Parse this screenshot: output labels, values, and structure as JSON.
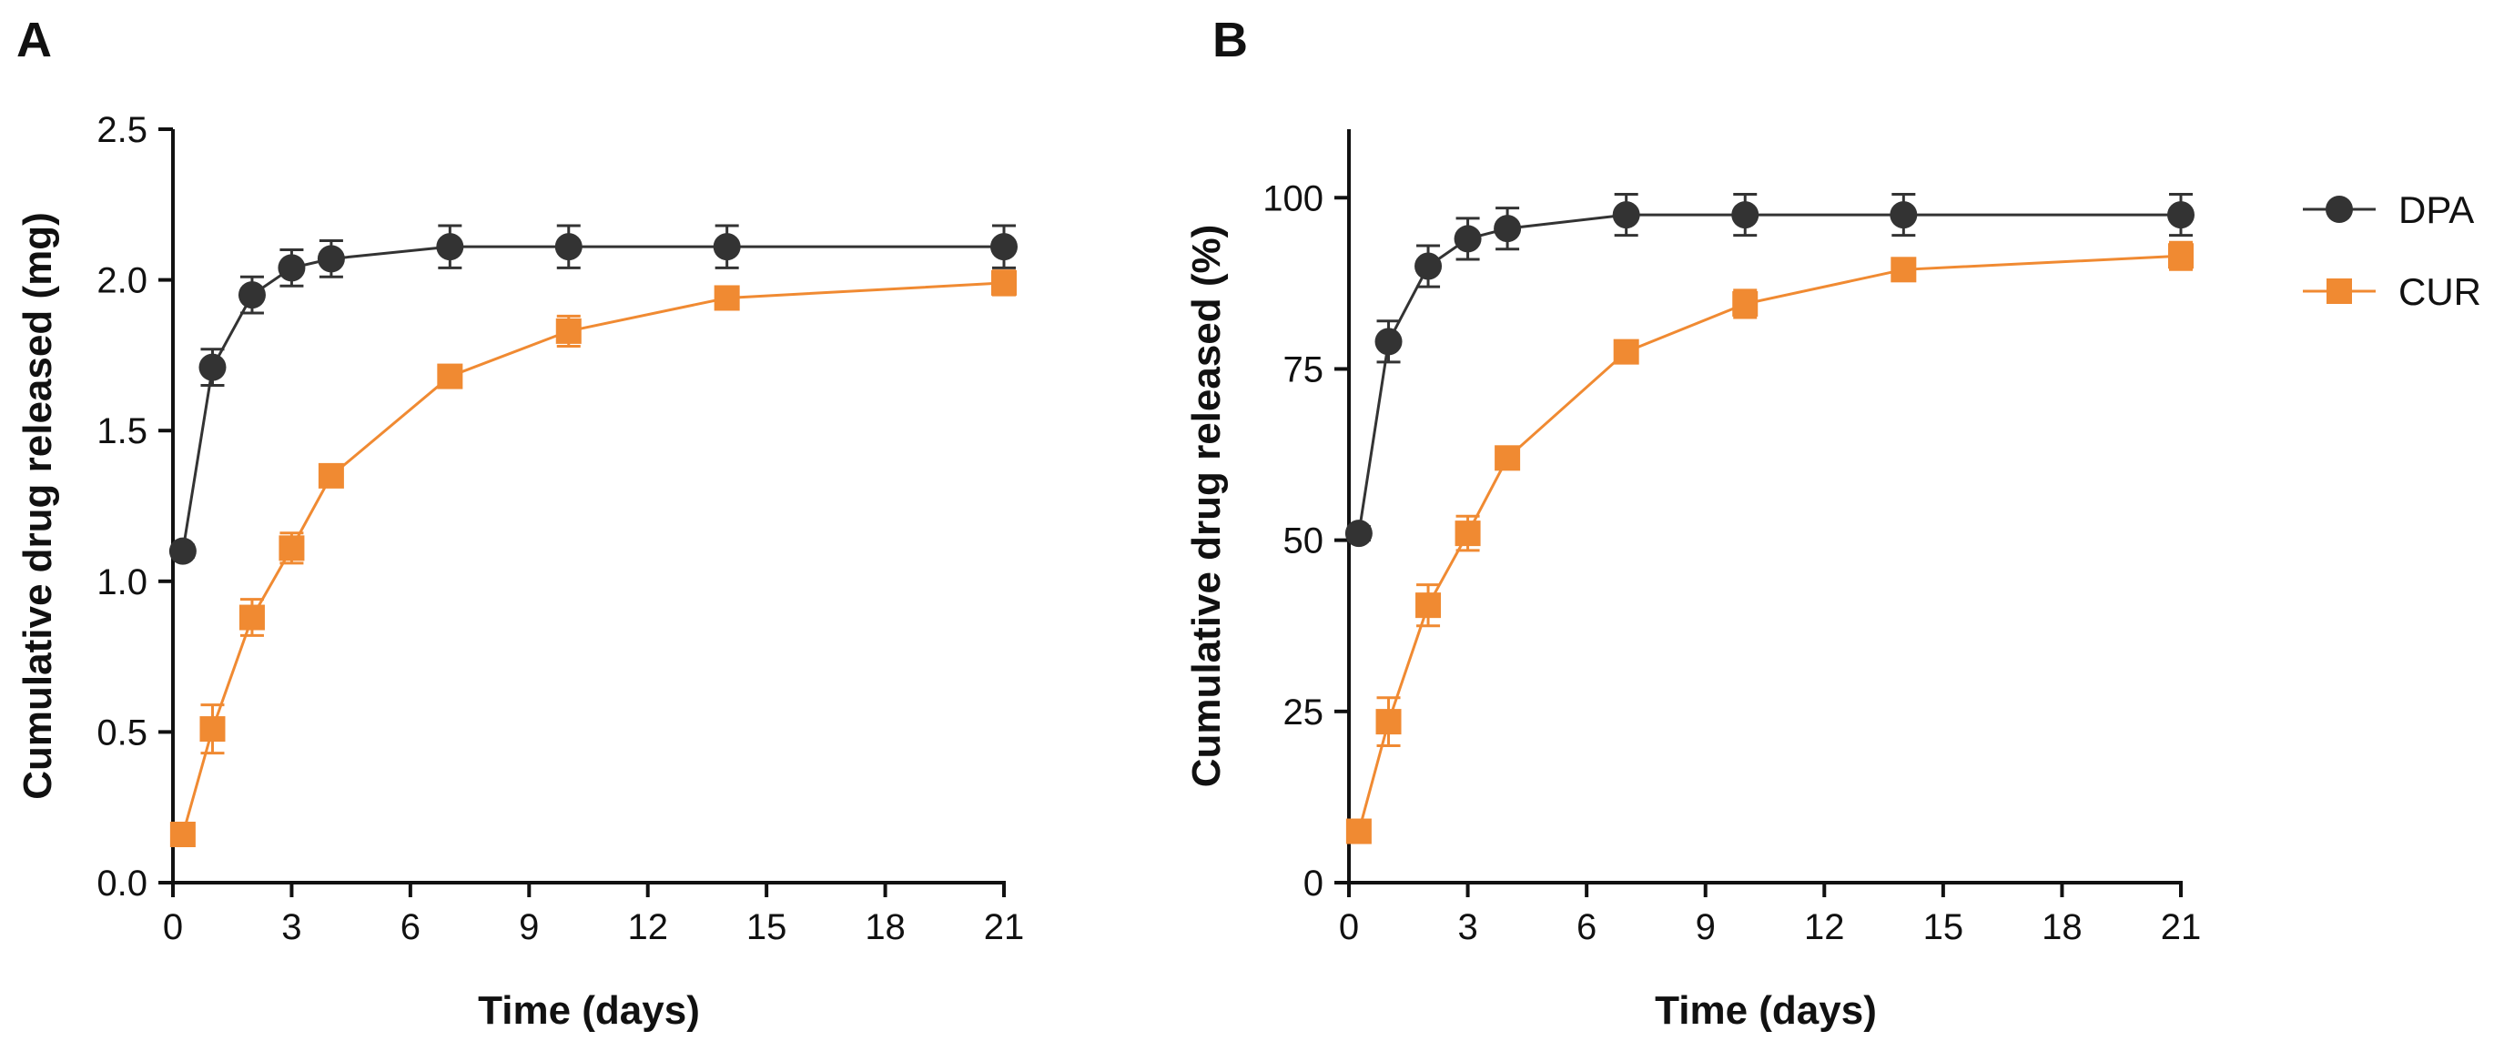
{
  "panels": [
    {
      "label": "A"
    },
    {
      "label": "B"
    }
  ],
  "legend": [
    {
      "name": "DPA",
      "marker": "circle",
      "color": "#333333"
    },
    {
      "name": "CUR",
      "marker": "square",
      "color": "#f08a32"
    }
  ],
  "chart_data": [
    {
      "type": "line",
      "panel": "A",
      "xlabel": "Time (days)",
      "ylabel": "Cumulative drug released (mg)",
      "xlim": [
        0,
        21
      ],
      "ylim": [
        0,
        2.5
      ],
      "xticks": [
        "0",
        "3",
        "6",
        "9",
        "12",
        "15",
        "18",
        "21"
      ],
      "yticks": [
        "0.0",
        "0.5",
        "1.0",
        "1.5",
        "2.0",
        "2.5"
      ],
      "legend": "right",
      "series": [
        {
          "name": "DPA",
          "color": "#333333",
          "marker": "circle",
          "x": [
            0.25,
            1,
            2,
            3,
            4,
            7,
            10,
            14,
            21
          ],
          "y": [
            1.1,
            1.71,
            1.95,
            2.04,
            2.07,
            2.11,
            2.11,
            2.11,
            2.11
          ],
          "error": [
            0.02,
            0.06,
            0.06,
            0.06,
            0.06,
            0.07,
            0.07,
            0.07,
            0.07
          ]
        },
        {
          "name": "CUR",
          "color": "#f08a32",
          "marker": "square",
          "x": [
            0.25,
            1,
            2,
            3,
            4,
            7,
            10,
            14,
            21
          ],
          "y": [
            0.16,
            0.51,
            0.88,
            1.11,
            1.35,
            1.68,
            1.83,
            1.94,
            1.99
          ],
          "error": [
            0.02,
            0.08,
            0.06,
            0.05,
            0.03,
            0.03,
            0.05,
            0.03,
            0.04
          ]
        }
      ]
    },
    {
      "type": "line",
      "panel": "B",
      "xlabel": "Time (days)",
      "ylabel": "Cumulative drug released (%)",
      "xlim": [
        0,
        21
      ],
      "ylim": [
        0,
        110
      ],
      "xticks": [
        "0",
        "3",
        "6",
        "9",
        "12",
        "15",
        "18",
        "21"
      ],
      "yticks": [
        "0",
        "25",
        "50",
        "75",
        "100"
      ],
      "legend": "right",
      "series": [
        {
          "name": "DPA",
          "color": "#333333",
          "marker": "circle",
          "x": [
            0.25,
            1,
            2,
            3,
            4,
            7,
            10,
            14,
            21
          ],
          "y": [
            51,
            79,
            90,
            94,
            95.5,
            97.5,
            97.5,
            97.5,
            97.5
          ],
          "error": [
            1,
            3,
            3,
            3,
            3,
            3,
            3,
            3,
            3
          ]
        },
        {
          "name": "CUR",
          "color": "#f08a32",
          "marker": "square",
          "x": [
            0.25,
            1,
            2,
            3,
            4,
            7,
            10,
            14,
            21
          ],
          "y": [
            7.5,
            23.5,
            40.5,
            51,
            62,
            77.5,
            84.5,
            89.5,
            91.5
          ],
          "error": [
            1,
            3.5,
            3,
            2.5,
            1.5,
            1.5,
            2,
            1,
            2
          ]
        }
      ]
    }
  ]
}
